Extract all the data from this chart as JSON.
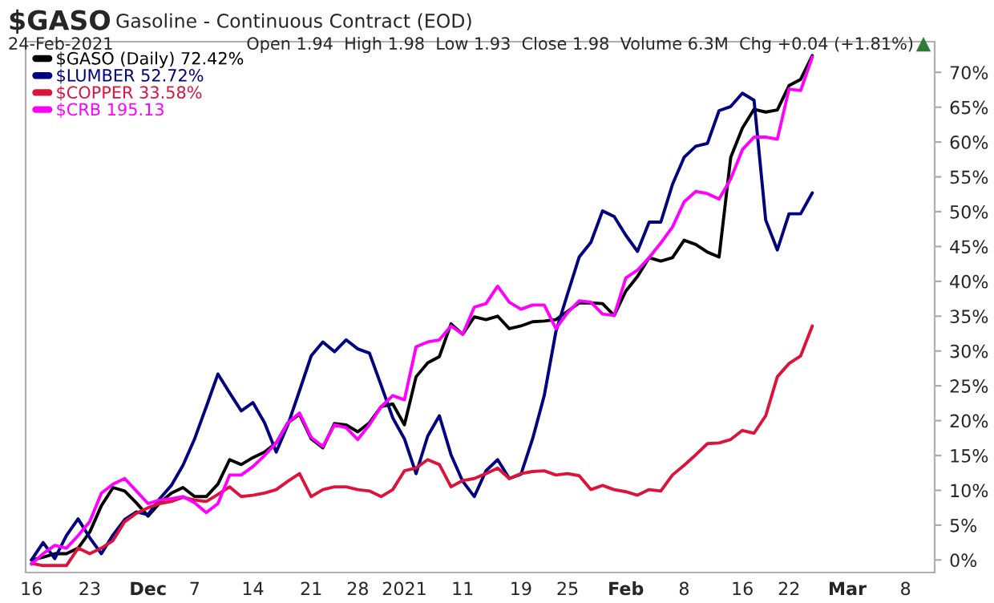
{
  "chart_data": {
    "type": "line",
    "title": "$GASO",
    "subtitle": "Gasoline - Continuous Contract (EOD)",
    "annotations": [
      "24-Feb-2021",
      "Open 1.94  High 1.98  Low 1.93  Close 1.98  Volume 6.3M  Chg +0.04 (+1.81%)"
    ],
    "categories": [
      "16",
      null,
      null,
      null,
      null,
      "23",
      null,
      null,
      null,
      null,
      "Dec",
      null,
      null,
      null,
      "7",
      null,
      null,
      null,
      null,
      "14",
      null,
      null,
      null,
      null,
      "21",
      null,
      null,
      null,
      "28",
      null,
      null,
      null,
      "2021",
      null,
      null,
      null,
      null,
      "11",
      null,
      null,
      null,
      null,
      "19",
      null,
      null,
      null,
      "25",
      null,
      null,
      null,
      null,
      "Feb",
      null,
      null,
      null,
      null,
      "8",
      null,
      null,
      null,
      null,
      "16",
      null,
      null,
      null,
      "22",
      null,
      null,
      null,
      null,
      "Mar",
      null,
      null,
      null,
      null,
      "8",
      null,
      null
    ],
    "series": [
      {
        "name": "$GASO (Daily) 72.42%",
        "color": "#000000",
        "values": [
          0,
          0.4,
          0.9,
          0.9,
          1.7,
          4.0,
          7.8,
          10.4,
          9.9,
          8.2,
          6.3,
          8.2,
          9.6,
          10.4,
          9.1,
          9.1,
          10.9,
          14.4,
          13.7,
          14.7,
          15.5,
          16.8,
          19.7,
          20.9,
          17.4,
          16.1,
          19.6,
          19.4,
          18.4,
          19.7,
          22.0,
          22.4,
          19.4,
          26.3,
          28.3,
          29.2,
          33.9,
          32.4,
          34.9,
          34.5,
          35.0,
          33.2,
          33.6,
          34.2,
          34.3,
          34.5,
          35.7,
          36.9,
          36.9,
          36.8,
          35.1,
          38.6,
          40.7,
          43.4,
          42.9,
          43.4,
          45.9,
          45.3,
          44.2,
          43.5,
          57.8,
          62.0,
          64.7,
          64.3,
          64.6,
          68.1,
          69.0,
          72.4,
          null,
          null,
          null,
          null,
          null,
          null,
          null,
          null,
          null,
          null
        ]
      },
      {
        "name": "$LUMBER 52.72%",
        "color": "#000080",
        "values": [
          0,
          2.5,
          0.2,
          3.5,
          5.9,
          3.2,
          0.9,
          3.6,
          5.8,
          6.9,
          6.5,
          8.8,
          10.7,
          13.6,
          17.4,
          22.0,
          26.7,
          24.0,
          21.4,
          22.6,
          19.7,
          15.5,
          19.4,
          24.3,
          29.3,
          31.3,
          29.9,
          31.6,
          30.3,
          29.7,
          25.1,
          20.4,
          17.4,
          12.4,
          17.8,
          20.7,
          15.1,
          11.3,
          9.1,
          12.8,
          14.4,
          11.7,
          12.3,
          17.4,
          23.6,
          32.8,
          38.2,
          43.5,
          45.6,
          50.1,
          49.3,
          46.6,
          44.3,
          48.5,
          48.5,
          53.9,
          57.8,
          59.4,
          59.8,
          64.5,
          65.1,
          67.0,
          66.0,
          48.8,
          44.5,
          49.7,
          49.7,
          52.7,
          null,
          null,
          null,
          null,
          null,
          null,
          null,
          null,
          null,
          null
        ]
      },
      {
        "name": "$COPPER 33.58%",
        "color": "#dc143c",
        "values": [
          -0.5,
          -0.8,
          -0.8,
          -0.8,
          1.7,
          0.9,
          1.7,
          2.8,
          5.5,
          6.7,
          7.5,
          8.1,
          8.4,
          9.0,
          8.6,
          8.4,
          9.4,
          10.5,
          9.1,
          9.3,
          9.6,
          10.1,
          11.3,
          12.4,
          9.1,
          10.1,
          10.5,
          10.5,
          10.1,
          9.9,
          9.1,
          10.1,
          12.8,
          13.2,
          14.4,
          13.7,
          10.5,
          11.4,
          11.7,
          12.4,
          13.2,
          11.7,
          12.4,
          12.7,
          12.8,
          12.2,
          12.4,
          12.1,
          10.1,
          10.7,
          10.1,
          9.8,
          9.3,
          10.1,
          9.9,
          12.2,
          13.6,
          15.1,
          16.7,
          16.8,
          17.3,
          18.6,
          18.2,
          20.7,
          26.3,
          28.2,
          29.3,
          33.6,
          null,
          null,
          null,
          null,
          null,
          null,
          null,
          null,
          null,
          null
        ]
      },
      {
        "name": "$CRB 195.13",
        "color": "#ff00ff",
        "values": [
          -0.6,
          0.9,
          2.1,
          1.7,
          3.5,
          5.5,
          9.6,
          10.9,
          11.7,
          9.9,
          8.1,
          8.6,
          8.8,
          9.1,
          8.2,
          6.8,
          8.1,
          12.2,
          12.2,
          13.4,
          15.0,
          16.8,
          19.7,
          21.1,
          17.6,
          16.3,
          19.4,
          19.0,
          17.3,
          19.4,
          22.0,
          23.6,
          23.0,
          30.6,
          31.3,
          31.6,
          33.6,
          32.4,
          36.3,
          36.8,
          39.3,
          37.0,
          36.0,
          36.6,
          36.6,
          33.2,
          35.5,
          37.2,
          37.0,
          35.3,
          35.1,
          40.5,
          41.6,
          43.4,
          45.5,
          47.8,
          51.4,
          52.9,
          52.6,
          51.8,
          54.7,
          58.9,
          60.7,
          60.7,
          60.4,
          67.6,
          67.4,
          72.2,
          null,
          null,
          null,
          null,
          null,
          null,
          null,
          null,
          null,
          null
        ]
      }
    ],
    "ylim": [
      -1.8,
      74.4
    ],
    "yticks": [
      {
        "value": 0,
        "label": "0%"
      },
      {
        "value": 5,
        "label": "5%"
      },
      {
        "value": 10,
        "label": "10%"
      },
      {
        "value": 15,
        "label": "15%"
      },
      {
        "value": 20,
        "label": "20%"
      },
      {
        "value": 25,
        "label": "25%"
      },
      {
        "value": 30,
        "label": "30%"
      },
      {
        "value": 35,
        "label": "35%"
      },
      {
        "value": 40,
        "label": "40%"
      },
      {
        "value": 45,
        "label": "45%"
      },
      {
        "value": 50,
        "label": "50%"
      },
      {
        "value": 55,
        "label": "55%"
      },
      {
        "value": 60,
        "label": "60%"
      },
      {
        "value": 65,
        "label": "65%"
      },
      {
        "value": 70,
        "label": "70%"
      }
    ],
    "grid": false,
    "legend": "top left",
    "marker": "none",
    "line_style": "solid"
  }
}
